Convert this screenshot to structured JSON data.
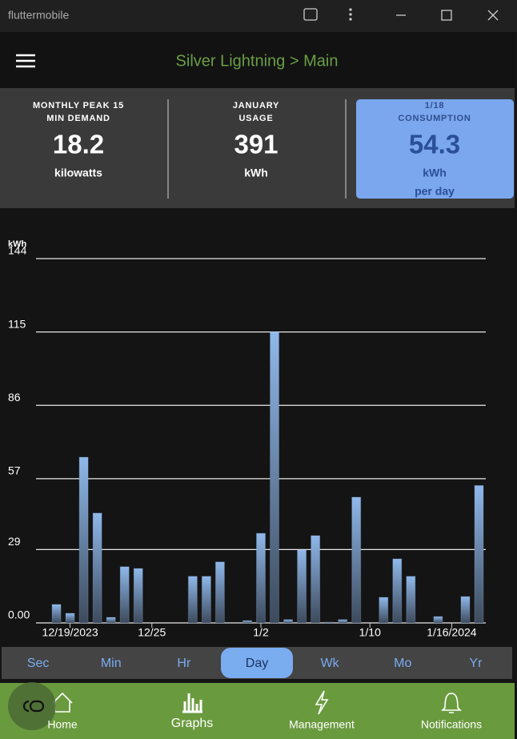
{
  "window": {
    "title": "fluttermobile"
  },
  "app_bar": {
    "title": "Silver Lightning > Main"
  },
  "cards": [
    {
      "label": [
        "MONTHLY PEAK 15",
        "MIN DEMAND"
      ],
      "value": "18.2",
      "unit": [
        "kilowatts"
      ]
    },
    {
      "label": [
        "JANUARY",
        "USAGE"
      ],
      "value": "391",
      "unit": [
        "kWh"
      ]
    },
    {
      "label": [
        "1/18",
        "CONSUMPTION"
      ],
      "value": "54.3",
      "unit": [
        "kWh",
        "per day"
      ]
    }
  ],
  "chart_data": {
    "type": "bar",
    "y_label": "kWh",
    "categories": [
      null,
      null,
      "12/19/2023",
      null,
      null,
      null,
      null,
      null,
      "12/25",
      null,
      null,
      null,
      null,
      null,
      null,
      null,
      "1/2",
      null,
      null,
      null,
      null,
      null,
      null,
      null,
      "1/10",
      null,
      null,
      null,
      null,
      null,
      "1/16/2024",
      null,
      null
    ],
    "values": [
      0,
      7.3,
      3.8,
      65.5,
      43.4,
      2.2,
      22.2,
      21.5,
      0,
      0,
      0,
      18.4,
      18.4,
      24.1,
      0,
      0.9,
      35.4,
      115,
      1.3,
      28.8,
      34.5,
      0.3,
      1.3,
      49.7,
      0,
      10.1,
      25.3,
      18.4,
      0,
      2.5,
      0,
      10.4,
      54.3
    ],
    "color": "#8fb8ea",
    "ylim": [
      0,
      144
    ],
    "yticks": [
      {
        "value": 0,
        "label": "0.00"
      },
      29,
      57,
      86,
      115,
      144
    ],
    "grid": true
  },
  "tabs": {
    "items": [
      "Sec",
      "Min",
      "Hr",
      "Day",
      "Wk",
      "Mo",
      "Yr"
    ],
    "selected": 3
  },
  "nav": {
    "items": [
      "Home",
      "Graphs",
      "Management",
      "Notifications"
    ],
    "selected": 1
  }
}
